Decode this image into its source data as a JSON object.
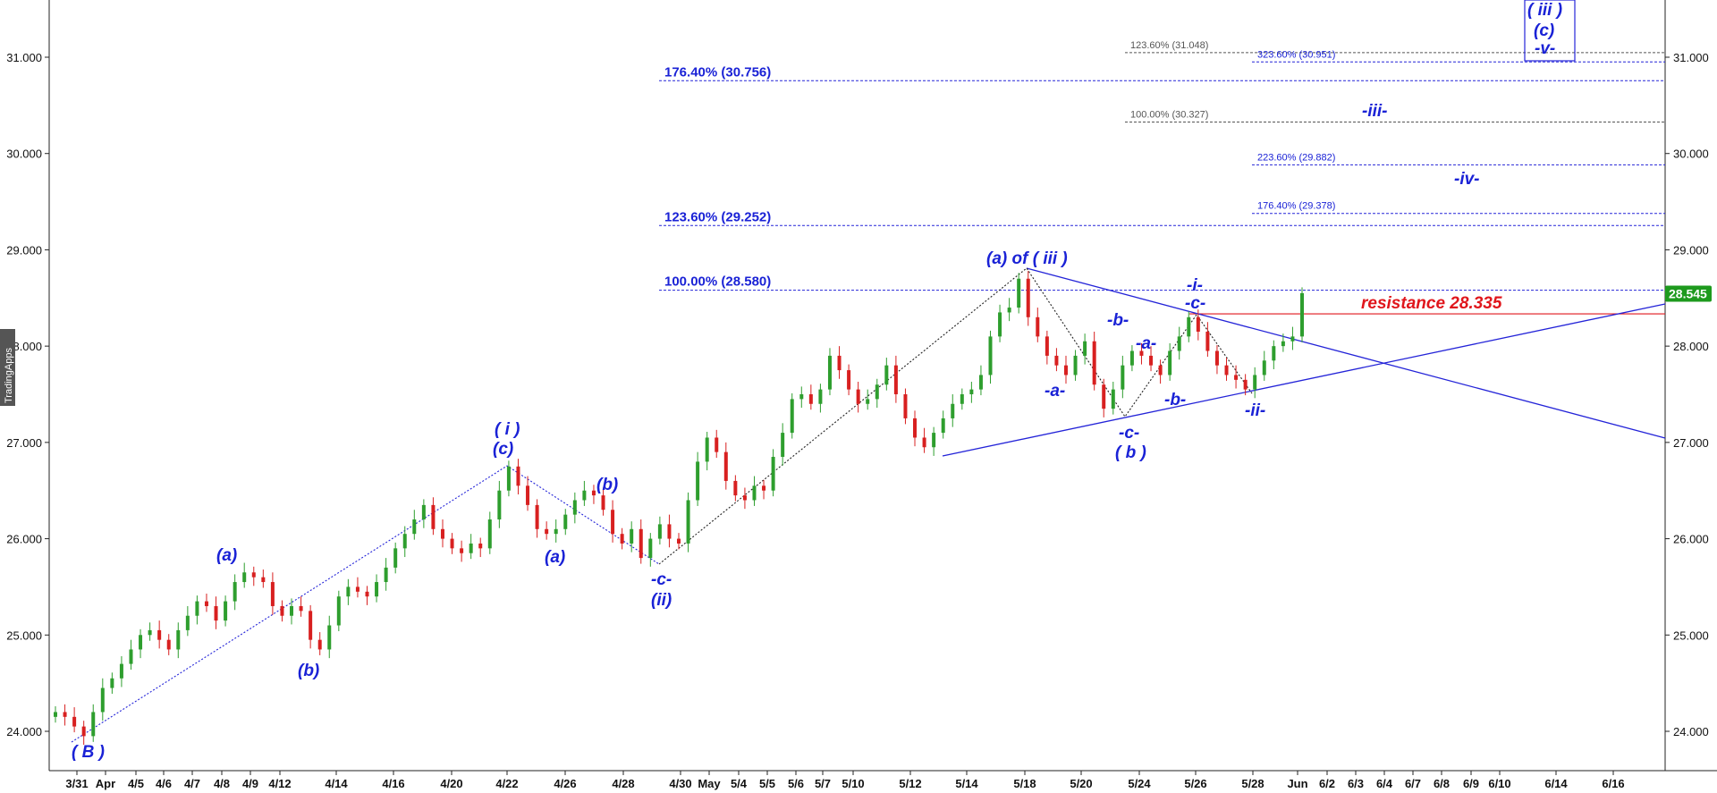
{
  "branding": {
    "watermark": "TradingApps"
  },
  "chart_data": {
    "type": "candlestick",
    "ylim": [
      23.85,
      31.55
    ],
    "y_ticks": [
      24,
      25,
      26,
      27,
      28,
      29,
      30,
      31
    ],
    "y_tick_labels": [
      "24.000",
      "25.000",
      "26.000",
      "27.000",
      "28.000",
      "29.000",
      "30.000",
      "31.000"
    ],
    "x_ticks": [
      "3/31",
      "Apr",
      "4/5",
      "4/6",
      "4/7",
      "4/8",
      "4/9",
      "4/12",
      "4/14",
      "4/16",
      "4/20",
      "4/22",
      "4/26",
      "4/28",
      "4/30",
      "May",
      "5/4",
      "5/5",
      "5/6",
      "5/7",
      "5/10",
      "5/12",
      "5/14",
      "5/18",
      "5/20",
      "5/24",
      "5/26",
      "5/28",
      "Jun",
      "6/2",
      "6/3",
      "6/4",
      "6/7",
      "6/8",
      "6/9",
      "6/10",
      "6/14",
      "6/16"
    ],
    "last_price": {
      "value": 28.545,
      "label": "28.545",
      "color": "#1e9a1e"
    },
    "colors": {
      "up": "#2e9e2e",
      "down": "#d82020",
      "wave": "#1a22d6",
      "resistance": "#e0161c",
      "grey": "#555555"
    },
    "ohlc_closes": [
      24.2,
      24.15,
      24.05,
      23.95,
      24.2,
      24.45,
      24.55,
      24.7,
      24.85,
      25.0,
      25.05,
      24.95,
      24.85,
      25.05,
      25.2,
      25.35,
      25.3,
      25.15,
      25.35,
      25.55,
      25.65,
      25.6,
      25.55,
      25.3,
      25.2,
      25.3,
      25.25,
      24.95,
      24.85,
      25.1,
      25.4,
      25.5,
      25.45,
      25.4,
      25.55,
      25.7,
      25.9,
      26.05,
      26.2,
      26.35,
      26.1,
      26.0,
      25.9,
      25.85,
      25.95,
      25.9,
      26.2,
      26.5,
      26.75,
      26.55,
      26.35,
      26.1,
      26.05,
      26.1,
      26.25,
      26.4,
      26.5,
      26.45,
      26.3,
      26.05,
      25.95,
      26.1,
      25.8,
      26.0,
      26.15,
      26.0,
      25.95,
      26.4,
      26.8,
      27.05,
      26.9,
      26.6,
      26.45,
      26.4,
      26.55,
      26.5,
      26.85,
      27.1,
      27.45,
      27.5,
      27.4,
      27.55,
      27.9,
      27.75,
      27.55,
      27.4,
      27.45,
      27.6,
      27.8,
      27.5,
      27.25,
      27.05,
      26.95,
      27.1,
      27.25,
      27.4,
      27.5,
      27.55,
      27.7,
      28.1,
      28.35,
      28.4,
      28.7,
      28.3,
      28.1,
      27.9,
      27.8,
      27.7,
      27.9,
      28.05,
      27.6,
      27.35,
      27.55,
      27.8,
      27.95,
      27.9,
      27.8,
      27.7,
      27.95,
      28.1,
      28.3,
      28.15,
      27.95,
      27.8,
      27.7,
      27.65,
      27.55,
      27.7,
      27.85,
      28.0,
      28.05,
      28.1,
      28.55
    ],
    "fibonacci_levels": [
      {
        "label": "176.40% (30.756)",
        "value": 30.756,
        "style": "blue-big"
      },
      {
        "label": "123.60% (29.252)",
        "value": 29.252,
        "style": "blue-big"
      },
      {
        "label": "100.00% (28.580)",
        "value": 28.58,
        "style": "blue-big"
      },
      {
        "label": "123.60% (31.048)",
        "value": 31.048,
        "style": "grey-small"
      },
      {
        "label": "100.00% (30.327)",
        "value": 30.327,
        "style": "grey-small"
      },
      {
        "label": "323.60% (30.951)",
        "value": 30.951,
        "style": "blue-small"
      },
      {
        "label": "223.60% (29.882)",
        "value": 29.882,
        "style": "blue-small"
      },
      {
        "label": "176.40% (29.378)",
        "value": 29.378,
        "style": "blue-small"
      }
    ],
    "resistance": {
      "label": "resistance 28.335",
      "value": 28.335
    },
    "wave_labels": [
      "( B )",
      "(a)",
      "(b)",
      "( i )",
      "(c)",
      "(a)",
      "(b)",
      "-c-",
      "(ii)",
      "(a) of ( iii )",
      "-a-",
      "-b-",
      "-c-",
      "( b )",
      "-a-",
      "-b-",
      "-i-",
      "-c-",
      "-ii-",
      "-iii-",
      "-iv-",
      "( iii )",
      "(c)",
      "-v-"
    ]
  }
}
